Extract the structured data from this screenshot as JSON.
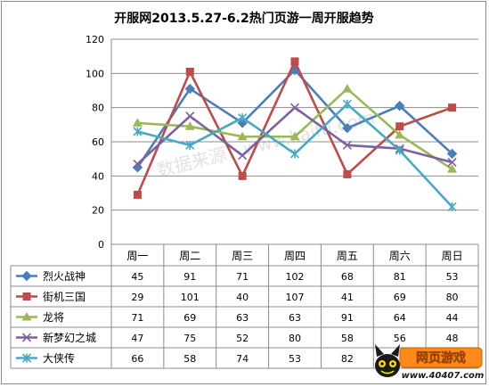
{
  "chart_data": {
    "type": "line",
    "title": "开服网2013.5.27-6.2热门页游一周开服趋势",
    "categories": [
      "周一",
      "周二",
      "周三",
      "周四",
      "周五",
      "周六",
      "周日"
    ],
    "ylim": [
      0,
      120
    ],
    "yticks": [
      "0",
      "20",
      "40",
      "60",
      "80",
      "100",
      "120"
    ],
    "grid": true,
    "legend": "data-table-left",
    "series": [
      {
        "name": "烈火战神",
        "values": [
          45,
          91,
          71,
          102,
          68,
          81,
          53
        ],
        "color": "#4a7ebb",
        "marker": "diamond"
      },
      {
        "name": "街机三国",
        "values": [
          29,
          101,
          40,
          107,
          41,
          69,
          80
        ],
        "color": "#be4b48",
        "marker": "square"
      },
      {
        "name": "龙将",
        "values": [
          71,
          69,
          63,
          63,
          91,
          64,
          44
        ],
        "color": "#98b954",
        "marker": "triangle"
      },
      {
        "name": "新梦幻之城",
        "values": [
          47,
          75,
          52,
          80,
          58,
          56,
          48
        ],
        "color": "#7d60a0",
        "marker": "x"
      },
      {
        "name": "大侠传",
        "values": [
          66,
          58,
          74,
          53,
          82,
          55,
          22
        ],
        "color": "#46aac5",
        "marker": "star"
      }
    ],
    "table_values": [
      [
        "45",
        "91",
        "71",
        "102",
        "68",
        "81",
        "53"
      ],
      [
        "29",
        "101",
        "40",
        "107",
        "41",
        "69",
        "80"
      ],
      [
        "71",
        "69",
        "63",
        "63",
        "91",
        "64",
        "44"
      ],
      [
        "47",
        "75",
        "52",
        "80",
        "58",
        "56",
        "48"
      ],
      [
        "66",
        "58",
        "74",
        "53",
        "82",
        "",
        ""
      ]
    ]
  },
  "watermark": "数据来源：www.kaifu.com",
  "logo": {
    "brand": "网页游戏",
    "url": "www.40407.com"
  }
}
